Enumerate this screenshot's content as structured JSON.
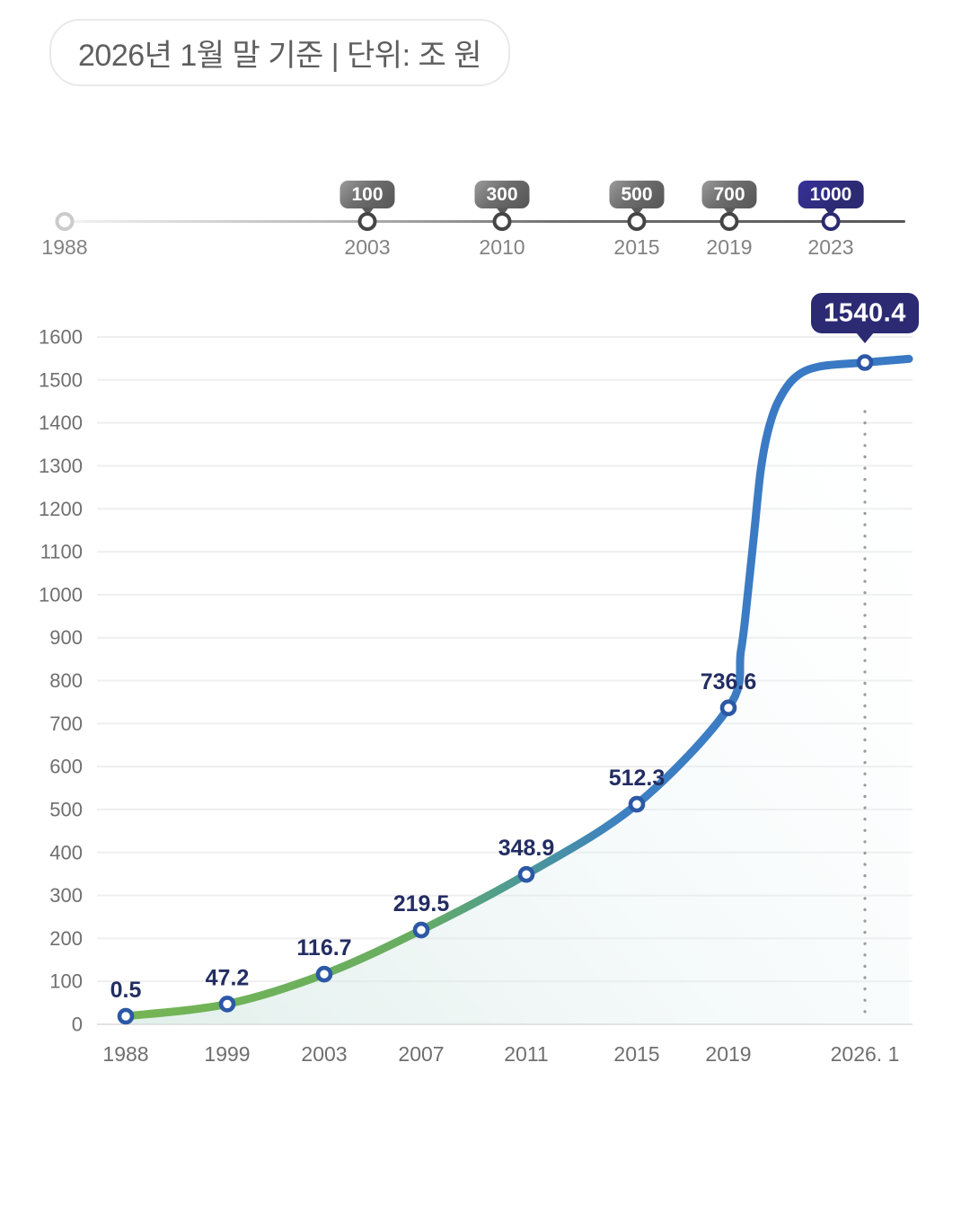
{
  "header": {
    "caption": "2026년 1월 말 기준 | 단위: 조 원"
  },
  "timeline": {
    "milestones": [
      {
        "year": "1988",
        "badge": null,
        "accent": false
      },
      {
        "year": "2003",
        "badge": "100",
        "accent": false
      },
      {
        "year": "2010",
        "badge": "300",
        "accent": false
      },
      {
        "year": "2015",
        "badge": "500",
        "accent": false
      },
      {
        "year": "2019",
        "badge": "700",
        "accent": false
      },
      {
        "year": "2023",
        "badge": "1000",
        "accent": true
      }
    ]
  },
  "chart_data": {
    "type": "line",
    "title": "",
    "categories": [
      "1988",
      "1999",
      "2003",
      "2007",
      "2011",
      "2015",
      "2019",
      "2026. 1"
    ],
    "values": [
      0.5,
      47.2,
      116.7,
      219.5,
      348.9,
      512.3,
      736.6,
      1540.4
    ],
    "point_labels": [
      "0.5",
      "47.2",
      "116.7",
      "219.5",
      "348.9",
      "512.3",
      "736.6",
      "1540.4"
    ],
    "highlight_point": {
      "category": "2026. 1",
      "label": "1540.4"
    },
    "xlabel": "",
    "ylabel": "",
    "ylim": [
      0,
      1600
    ],
    "ytick_step": 100,
    "grid": "horizontal",
    "legend": null,
    "annotations": {
      "dotted_guide_at_category": "2026. 1"
    },
    "colors": {
      "line_gradient": [
        "#75b554",
        "#4e9c90",
        "#3a79c4"
      ],
      "marker_ring": "#2c58a6",
      "point_label": "#232d63",
      "highlight_badge": "#2c2a72",
      "grid_line": "#efefef",
      "axis_line": "#e2e2e2",
      "dotted_guide": "#9b9b9b"
    }
  }
}
